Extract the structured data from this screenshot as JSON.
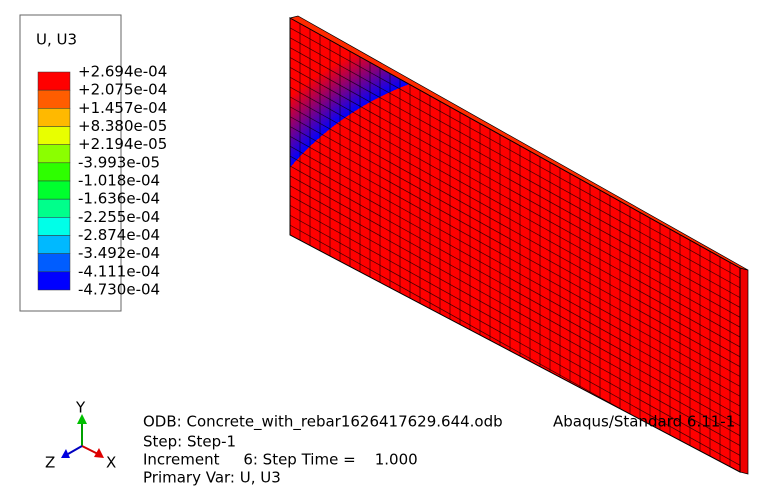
{
  "legend": {
    "title": "U, U3",
    "labels": [
      "+2.694e-04",
      "+2.075e-04",
      "+1.457e-04",
      "+8.380e-05",
      "+2.194e-05",
      "-3.993e-05",
      "-1.018e-04",
      "-1.636e-04",
      "-2.255e-04",
      "-2.874e-04",
      "-3.492e-04",
      "-4.111e-04",
      "-4.730e-04"
    ],
    "colors": [
      "#ff0000",
      "#ff5d00",
      "#ffb900",
      "#e8ff00",
      "#8bff00",
      "#2eff00",
      "#00ff2e",
      "#00ff8b",
      "#00ffe8",
      "#00b9ff",
      "#005dff",
      "#0000ff"
    ]
  },
  "triad": {
    "y": "Y",
    "z": "Z",
    "x": "X"
  },
  "info": {
    "odb": "ODB: Concrete_with_rebar1626417629.644.odb",
    "solver": "Abaqus/Standard 6.11-1",
    "step": "Step: Step-1",
    "increment": "Increment     6: Step Time =    1.000",
    "primary_var": "Primary Var: U, U3"
  }
}
